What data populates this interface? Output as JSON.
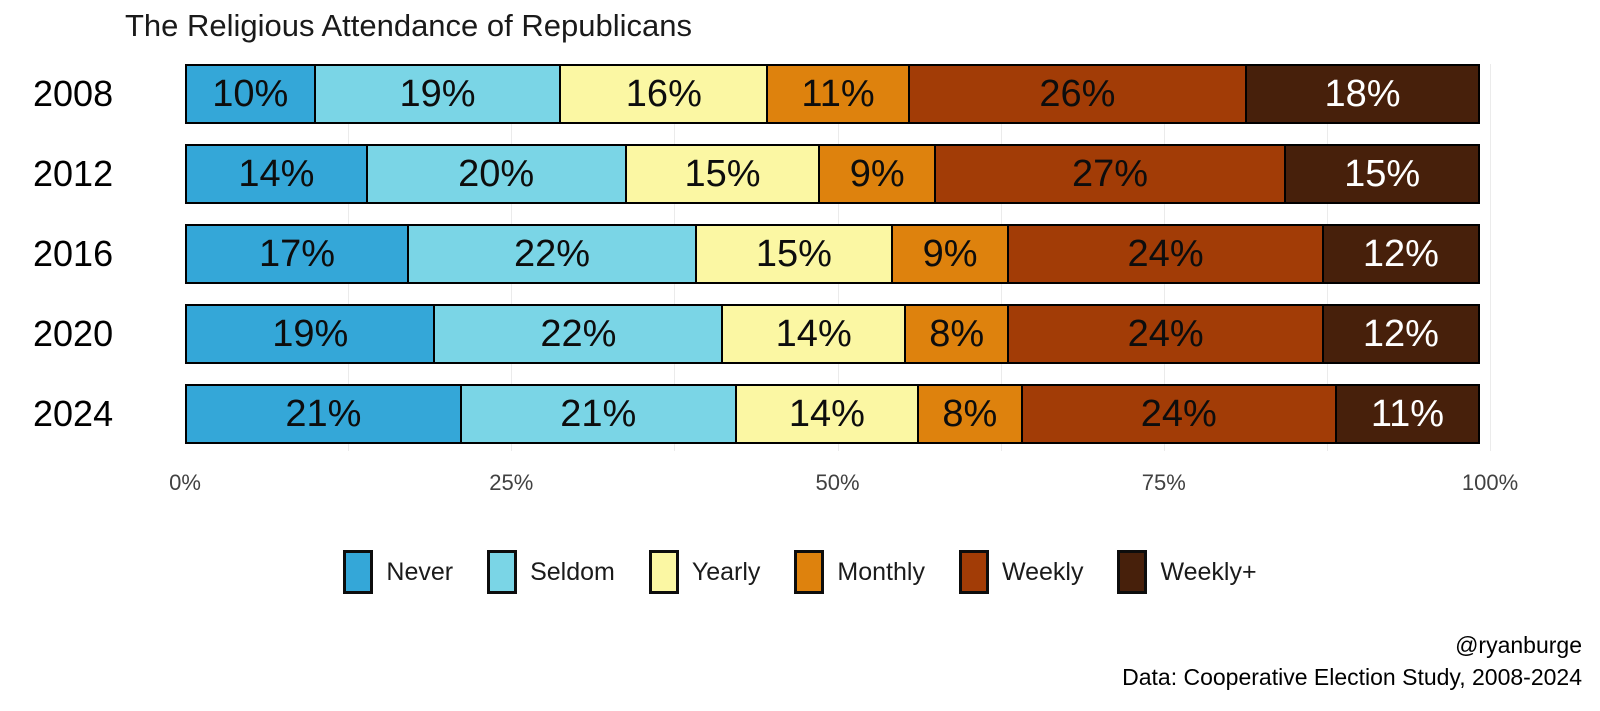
{
  "title": "The Religious Attendance of Republicans",
  "chart_data": {
    "type": "bar",
    "orientation": "horizontal",
    "stacked": true,
    "title": "The Religious Attendance of Republicans",
    "categories": [
      "2008",
      "2012",
      "2016",
      "2020",
      "2024"
    ],
    "series": [
      {
        "name": "Never",
        "color": "#34A7D8",
        "label_color": "#0d0d0d",
        "values": [
          10,
          14,
          17,
          19,
          21
        ]
      },
      {
        "name": "Seldom",
        "color": "#7AD5E6",
        "label_color": "#0d0d0d",
        "values": [
          19,
          20,
          22,
          22,
          21
        ]
      },
      {
        "name": "Yearly",
        "color": "#FBF7A3",
        "label_color": "#0d0d0d",
        "values": [
          16,
          15,
          15,
          14,
          14
        ]
      },
      {
        "name": "Monthly",
        "color": "#DE820D",
        "label_color": "#0d0d0d",
        "values": [
          11,
          9,
          9,
          8,
          8
        ]
      },
      {
        "name": "Weekly",
        "color": "#A23C06",
        "label_color": "#0d0d0d",
        "values": [
          26,
          27,
          24,
          24,
          24
        ]
      },
      {
        "name": "Weekly+",
        "color": "#47200B",
        "label_color": "#ffffff",
        "values": [
          18,
          15,
          12,
          12,
          11
        ]
      }
    ],
    "value_suffix": "%",
    "xlabel": "",
    "ylabel": "",
    "xlim": [
      0,
      100
    ],
    "x_ticks": [
      {
        "label": "0%",
        "pos": 0
      },
      {
        "label": "25%",
        "pos": 25
      },
      {
        "label": "50%",
        "pos": 50
      },
      {
        "label": "75%",
        "pos": 75
      },
      {
        "label": "100%",
        "pos": 100
      }
    ],
    "grid": "faint-vertical-minor",
    "legend_position": "bottom"
  },
  "caption": {
    "handle": "@ryanburge",
    "source": "Data: Cooperative Election Study, 2008-2024"
  }
}
